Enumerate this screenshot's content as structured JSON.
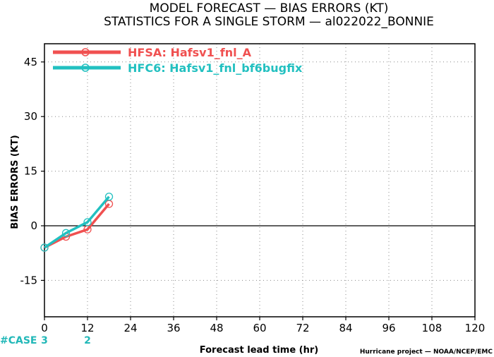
{
  "chart_data": {
    "type": "line",
    "title": "MODEL FORECAST — BIAS ERRORS (KT)",
    "subtitle": "STATISTICS FOR A SINGLE STORM — al022022_BONNIE",
    "xlabel": "Forecast lead time (hr)",
    "ylabel": "BIAS ERRORS (KT)",
    "xlim": [
      0,
      120
    ],
    "ylim": [
      -25,
      50
    ],
    "xticks": [
      0,
      12,
      24,
      36,
      48,
      60,
      72,
      84,
      96,
      108,
      120
    ],
    "yticks": [
      -15,
      0,
      15,
      30,
      45
    ],
    "grid": true,
    "legend_position": "top-left",
    "zero_line": true,
    "series": [
      {
        "name": "HFSA: Hafsv1_fnl_A",
        "color": "#f05050",
        "x": [
          0,
          6,
          12,
          18
        ],
        "y": [
          -6,
          -3,
          -1,
          6
        ]
      },
      {
        "name": "HFC6: Hafsv1_fnl_bf6bugfix",
        "color": "#22c0c0",
        "x": [
          0,
          6,
          12,
          18
        ],
        "y": [
          -6,
          -2,
          1,
          8
        ]
      }
    ],
    "case_counts": {
      "label": "#CASE",
      "entries": [
        {
          "x": 0,
          "count": "3"
        },
        {
          "x": 12,
          "count": "2"
        }
      ]
    },
    "credit": "Hurricane project — NOAA/NCEP/EMC"
  }
}
